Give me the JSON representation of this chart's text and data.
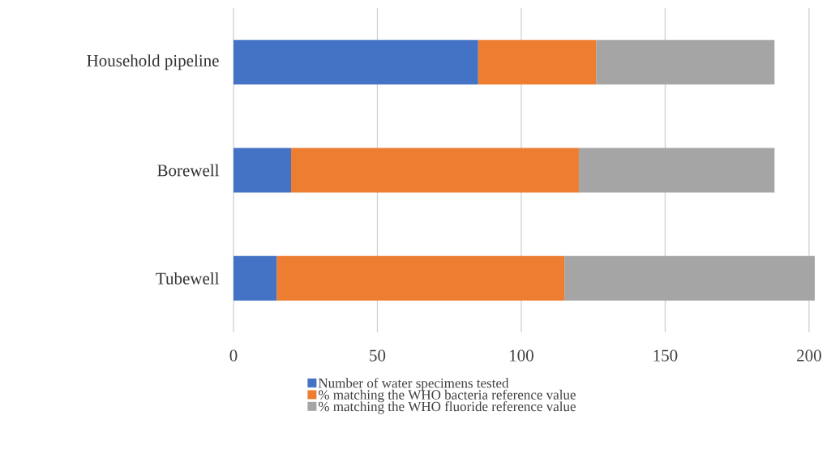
{
  "chart_data": {
    "type": "bar",
    "orientation": "horizontal",
    "stacked": true,
    "categories": [
      "Household pipeline",
      "Borewell",
      "Tubewell"
    ],
    "series": [
      {
        "name": "Number of water specimens tested",
        "color": "#4472c4",
        "values": [
          85,
          20,
          15
        ]
      },
      {
        "name": "% matching the WHO bacteria reference value",
        "color": "#ed7d31",
        "values": [
          41,
          100,
          100
        ]
      },
      {
        "name": "% matching the WHO fluoride reference value",
        "color": "#a5a5a5",
        "values": [
          62,
          68,
          87
        ]
      }
    ],
    "xlim": [
      0,
      202
    ],
    "xticks": [
      0,
      50,
      100,
      150,
      200
    ],
    "grid": "x",
    "legend": "bottom"
  }
}
